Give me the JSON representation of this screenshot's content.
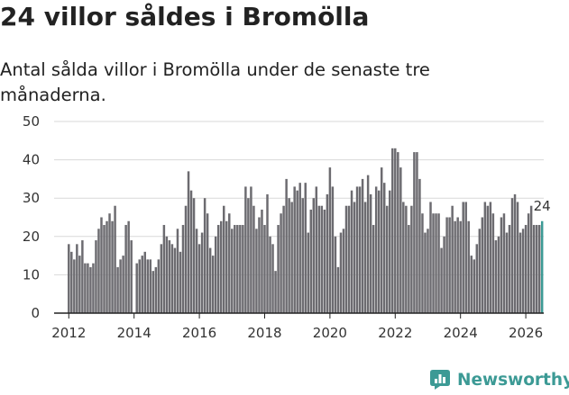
{
  "title": "24 villor såldes i Bromölla",
  "subtitle": "Antal sålda villor i Bromölla under de senaste tre månaderna.",
  "brand": {
    "name": "Newsworthy",
    "icon": "bar-chart-speech-bubble-icon",
    "color": "#3c9a95"
  },
  "chart_data": {
    "type": "bar",
    "title": "24 villor såldes i Bromölla",
    "subtitle": "Antal sålda villor i Bromölla under de senaste tre månaderna.",
    "xlabel": "",
    "ylabel": "",
    "ylim": [
      0,
      50
    ],
    "yticks": [
      0,
      10,
      20,
      30,
      40,
      50
    ],
    "xticks": [
      2012,
      2014,
      2016,
      2018,
      2020,
      2022,
      2024,
      2026
    ],
    "xlim": [
      2011.55,
      2026.55
    ],
    "grid": true,
    "bar_color": "#6c6b70",
    "highlight_color": "#3c9a95",
    "start": [
      2012,
      1
    ],
    "highlight_label": "24",
    "values": [
      18,
      16,
      14,
      18,
      15,
      19,
      13,
      13,
      12,
      13,
      19,
      22,
      25,
      23,
      24,
      26,
      24,
      28,
      12,
      14,
      15,
      23,
      24,
      19,
      0,
      13,
      14,
      15,
      16,
      14,
      14,
      11,
      12,
      14,
      18,
      23,
      20,
      19,
      18,
      17,
      22,
      16,
      23,
      28,
      37,
      32,
      30,
      22,
      18,
      21,
      30,
      26,
      17,
      15,
      20,
      23,
      24,
      28,
      24,
      26,
      22,
      23,
      23,
      23,
      23,
      33,
      30,
      33,
      28,
      22,
      25,
      27,
      23,
      31,
      20,
      18,
      11,
      23,
      26,
      28,
      35,
      30,
      29,
      33,
      32,
      34,
      30,
      34,
      21,
      27,
      30,
      33,
      28,
      28,
      27,
      31,
      38,
      33,
      20,
      12,
      21,
      22,
      28,
      28,
      32,
      29,
      33,
      33,
      35,
      29,
      36,
      31,
      23,
      33,
      32,
      38,
      34,
      28,
      32,
      43,
      43,
      42,
      38,
      29,
      28,
      23,
      28,
      42,
      42,
      35,
      26,
      21,
      22,
      29,
      26,
      26,
      26,
      17,
      20,
      25,
      25,
      28,
      24,
      25,
      24,
      29,
      29,
      24,
      15,
      14,
      18,
      22,
      25,
      29,
      28,
      29,
      26,
      19,
      20,
      25,
      26,
      21,
      23,
      30,
      31,
      29,
      21,
      22,
      23,
      26,
      28,
      23,
      23,
      23,
      24
    ]
  }
}
